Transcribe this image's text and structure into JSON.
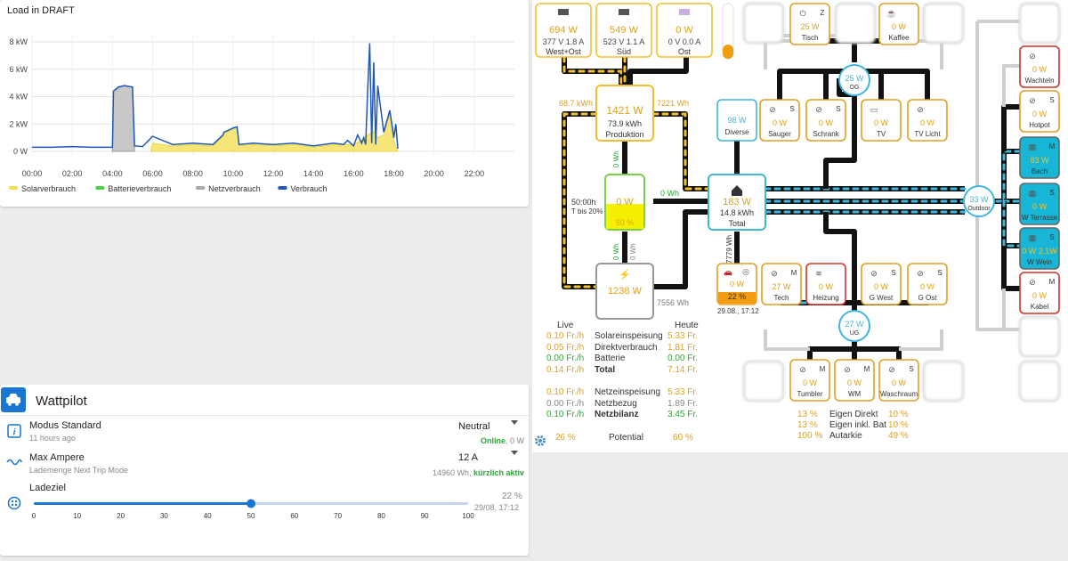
{
  "chart": {
    "title": "Load in DRAFT",
    "y_ticks": [
      "8 kW",
      "6 kW",
      "4 kW",
      "2 kW",
      "0 W"
    ],
    "x_ticks": [
      "00:00",
      "02:00",
      "04:00",
      "06:00",
      "08:00",
      "10:00",
      "12:00",
      "14:00",
      "16:00",
      "18:00",
      "20:00",
      "22:00"
    ],
    "legend": [
      {
        "label": "Solarverbrauch",
        "color": "#f4e04d"
      },
      {
        "label": "Batterieverbrauch",
        "color": "#4ccf4c"
      },
      {
        "label": "Netzverbrauch",
        "color": "#a9a9a9"
      },
      {
        "label": "Verbrauch",
        "color": "#1f58b8"
      }
    ]
  },
  "chart_data": {
    "type": "area",
    "title": "Load in DRAFT",
    "xlabel": "",
    "ylabel": "",
    "x_unit": "hour",
    "ylim": [
      0,
      9
    ],
    "y_unit": "kW",
    "series": [
      {
        "name": "Verbrauch",
        "color": "#1f58b8",
        "x": [
          0,
          1,
          2,
          3,
          3.5,
          4,
          4.05,
          4.3,
          4.6,
          5,
          5.1,
          5.5,
          6,
          7,
          8,
          9,
          9.5,
          9.55,
          10,
          10.2,
          10.3,
          11,
          12,
          13,
          14,
          15,
          15.5,
          15.7,
          16,
          16.2,
          16.4,
          16.5,
          16.6,
          16.7,
          16.8,
          16.9,
          17,
          17.1,
          17.2,
          17.5,
          17.8,
          18,
          18.1,
          18.2
        ],
        "y": [
          0.3,
          0.3,
          0.35,
          0.3,
          0.3,
          0.3,
          4.4,
          4.7,
          4.8,
          4.7,
          0.4,
          0.35,
          1.1,
          0.5,
          0.6,
          0.5,
          1.2,
          1.4,
          1.7,
          1.8,
          0.5,
          0.6,
          0.5,
          0.6,
          0.4,
          0.6,
          0.5,
          0.8,
          0.4,
          1.2,
          0.6,
          1.0,
          0.5,
          4.5,
          7.9,
          0.6,
          6.5,
          0.5,
          4.8,
          1.4,
          3.0,
          1.0,
          2.0,
          0.2
        ]
      },
      {
        "name": "Netzverbrauch",
        "color": "#a9a9a9",
        "x": [
          4,
          4.05,
          4.3,
          4.6,
          5,
          5.1
        ],
        "y": [
          0,
          4.4,
          4.7,
          4.8,
          4.7,
          0
        ]
      },
      {
        "name": "Solarverbrauch",
        "color": "#f4e04d",
        "x": [
          5.9,
          6,
          7,
          8,
          9,
          9.5,
          9.55,
          10,
          10.2,
          10.3,
          11,
          12,
          13,
          14,
          15,
          16,
          16.5,
          16.7,
          17,
          17.2,
          17.5,
          17.8,
          18,
          18.2
        ],
        "y": [
          0,
          0.6,
          0.4,
          0.5,
          0.4,
          1.1,
          1.3,
          1.6,
          1.7,
          0.4,
          0.5,
          0.4,
          0.5,
          0.3,
          0.5,
          0.5,
          0.9,
          1.2,
          1.5,
          1.0,
          1.2,
          2.8,
          0.8,
          0
        ]
      },
      {
        "name": "Batterieverbrauch",
        "color": "#4ccf4c",
        "x": [],
        "y": []
      }
    ]
  },
  "wattpilot": {
    "title": "Wattpilot",
    "modus_label": "Modus Standard",
    "modus_sub": "11 hours ago",
    "modus_value": "Neutral",
    "online": "Online",
    "online_suffix": ", 0 W",
    "ampere_label": "Max Ampere",
    "ampere_sub": "Lademenge Next Trip Mode",
    "ampere_value": "12 A",
    "ampere_status_prefix": "14960 Wh, ",
    "ampere_status": "kürzlich aktiv",
    "ladeziel_label": "Ladeziel",
    "ladeziel_pct": "22 %",
    "ladeziel_date": "29/08, 17:12",
    "slider_value": 50,
    "slider_ticks": [
      "0",
      "10",
      "20",
      "30",
      "40",
      "50",
      "60",
      "70",
      "80",
      "90",
      "100"
    ]
  },
  "flow": {
    "pv": [
      {
        "power": "694 W",
        "volt": "377 V",
        "amp": "1.8 A",
        "name": "West+Ost"
      },
      {
        "power": "549 W",
        "volt": "523 V",
        "amp": "1.1 A",
        "name": "Süd"
      },
      {
        "power": "0 W",
        "volt": "0 V",
        "amp": "0.0 A",
        "name": "Ost"
      }
    ],
    "produktion": {
      "power": "1421 W",
      "energy": "73.9 kWh",
      "name": "Produktion",
      "left_kwh": "68.7 kWh",
      "right_kwh": "7221 Wh"
    },
    "battery": {
      "power": "0 W",
      "soc": "50 %",
      "time": "50:00h",
      "note": "T bis 20%",
      "in": "0 Wh",
      "down": "0 Wh",
      "right": "0 Wh",
      "up": "0 Wh"
    },
    "grid": {
      "power": "1238 W",
      "energy": "7556 Wh"
    },
    "house": {
      "power": "183 W",
      "energy": "14.8 kWh",
      "name": "Total",
      "vert": "7779 Wh"
    },
    "diverse": {
      "power": "98 W",
      "name": "Diverse"
    },
    "car": {
      "power": "0 W",
      "pct": "22 %",
      "date": "29.08., 17:12"
    },
    "og": {
      "power": "25 W",
      "name": "OG"
    },
    "ug": {
      "power": "27 W",
      "name": "UG"
    },
    "outdoor": {
      "power": "33 W",
      "name": "Outdoor"
    },
    "top_devices": [
      {
        "power": "25 W",
        "name": "Tisch",
        "tag": "Z"
      },
      {
        "power": "0 W",
        "name": "Kaffee",
        "tag": ""
      }
    ],
    "og_devices": [
      {
        "power": "0 W",
        "name": "Sauger",
        "tag": "S"
      },
      {
        "power": "0 W",
        "name": "Schrank",
        "tag": "S"
      },
      {
        "power": "0 W",
        "name": "TV",
        "tag": ""
      },
      {
        "power": "0 W",
        "name": "TV Licht",
        "tag": ""
      }
    ],
    "ug_devices": [
      {
        "power": "27 W",
        "name": "Tech",
        "tag": "M"
      },
      {
        "power": "0 W",
        "name": "Heizung",
        "tag": ""
      },
      {
        "power": "0 W",
        "name": "G West",
        "tag": "S"
      },
      {
        "power": "0 W",
        "name": "G Ost",
        "tag": "S"
      }
    ],
    "bottom_devices": [
      {
        "power": "0 W",
        "name": "Tumbler",
        "tag": "M"
      },
      {
        "power": "0 W",
        "name": "WM",
        "tag": "M"
      },
      {
        "power": "0 W",
        "name": "Waschraum",
        "tag": "S"
      }
    ],
    "right_devices": [
      {
        "power": "0 W",
        "name": "Wachteln",
        "tag": ""
      },
      {
        "power": "0 W",
        "name": "Hotpot",
        "tag": "S"
      },
      {
        "power": "83 W",
        "name": "Bach",
        "tag": "M"
      },
      {
        "power": "0 W",
        "name": "W Terrasse",
        "tag": "S"
      },
      {
        "power": "0 W 2.1W",
        "name": "W Wein",
        "tag": "S"
      },
      {
        "power": "0 W",
        "name": "Kabel",
        "tag": "M"
      }
    ],
    "finance": {
      "col_live": "Live",
      "col_heute": "Heute",
      "rows": [
        {
          "live": "0.10 Fr./h",
          "label": "Solareinspeisung",
          "heute": "5.33 Fr."
        },
        {
          "live": "0.05 Fr./h",
          "label": "Direktverbrauch",
          "heute": "1.81 Fr."
        },
        {
          "live": "0.00 Fr./h",
          "label": "Batterie",
          "heute": "0.00 Fr."
        },
        {
          "live": "0.14 Fr./h",
          "label": "Total",
          "heute": "7.14 Fr."
        }
      ],
      "rows2": [
        {
          "live": "0.10 Fr./h",
          "label": "Netzeinspeisung",
          "heute": "5.33 Fr."
        },
        {
          "live": "0.00 Fr./h",
          "label": "Netzbezug",
          "heute": "1.89 Fr."
        },
        {
          "live": "0.10 Fr./h",
          "label": "Netzbilanz",
          "heute": "3.45 Fr."
        }
      ],
      "potential": {
        "live": "26 %",
        "label": "Potential",
        "heute": "60 %"
      }
    },
    "stats": [
      {
        "a": "13 %",
        "label": "Eigen Direkt",
        "b": "10 %"
      },
      {
        "a": "13 %",
        "label": "Eigen inkl. Bat",
        "b": "10 %"
      },
      {
        "a": "100 %",
        "label": "Autarkie",
        "b": "49 %"
      }
    ]
  }
}
